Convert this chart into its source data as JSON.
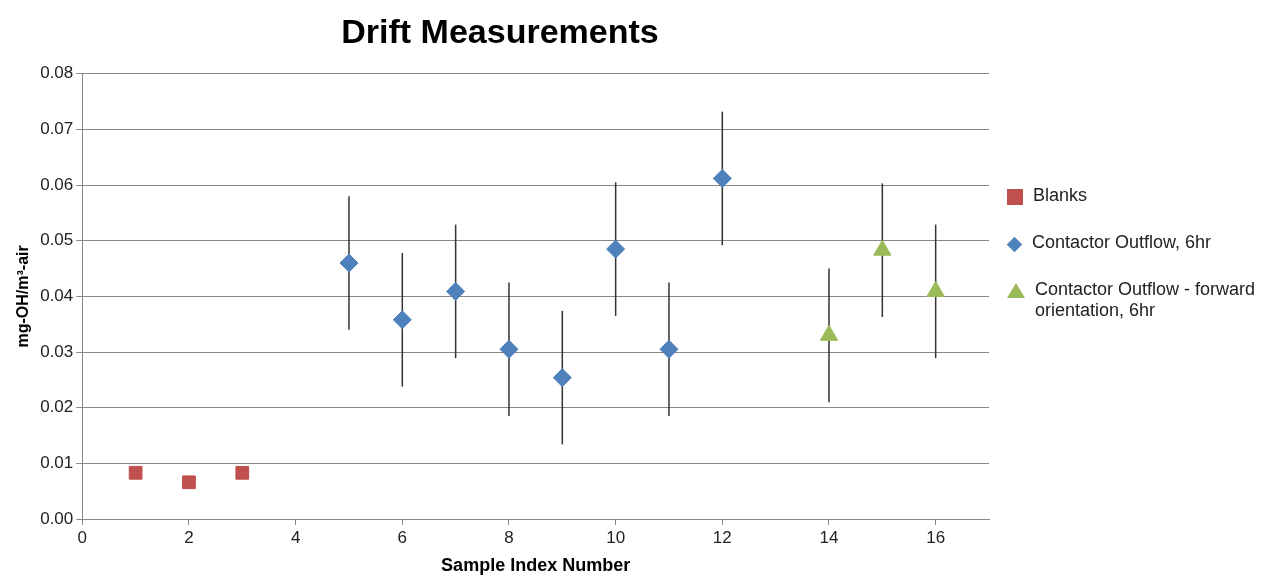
{
  "chart_data": {
    "type": "scatter",
    "title": "Drift Measurements",
    "xlabel": "Sample Index Number",
    "ylabel": "mg-OH/m³-air",
    "xlim": [
      0,
      17
    ],
    "xticks": [
      0,
      2,
      4,
      6,
      8,
      10,
      12,
      14,
      16
    ],
    "ylim": [
      0,
      0.08
    ],
    "yticks": [
      {
        "value": 0,
        "label": "0.00"
      },
      0.01,
      0.02,
      0.03,
      0.04,
      0.05,
      0.06,
      0.07,
      0.08
    ],
    "grid": "y",
    "legend": "right",
    "series": [
      {
        "name": "Blanks",
        "color": "#c0504d",
        "marker": "square",
        "x": [
          1,
          2,
          3
        ],
        "values": [
          0.0083,
          0.0066,
          0.0083
        ]
      },
      {
        "name": "Contactor Outflow, 6hr",
        "color": "#4f81bd",
        "marker": "diamond",
        "x": [
          5,
          6,
          7,
          8,
          9,
          10,
          11,
          12
        ],
        "values": [
          0.046,
          0.0358,
          0.0409,
          0.0305,
          0.0254,
          0.0485,
          0.0305,
          0.0612
        ],
        "errors": [
          0.012,
          0.012,
          0.012,
          0.012,
          0.012,
          0.012,
          0.012,
          0.012
        ]
      },
      {
        "name": "Contactor Outflow - forward orientation, 6hr",
        "color": "#9bbb59",
        "marker": "triangle",
        "x": [
          14,
          15,
          16
        ],
        "values": [
          0.033,
          0.0483,
          0.0409
        ],
        "errors": [
          0.012,
          0.012,
          0.012
        ]
      }
    ]
  }
}
